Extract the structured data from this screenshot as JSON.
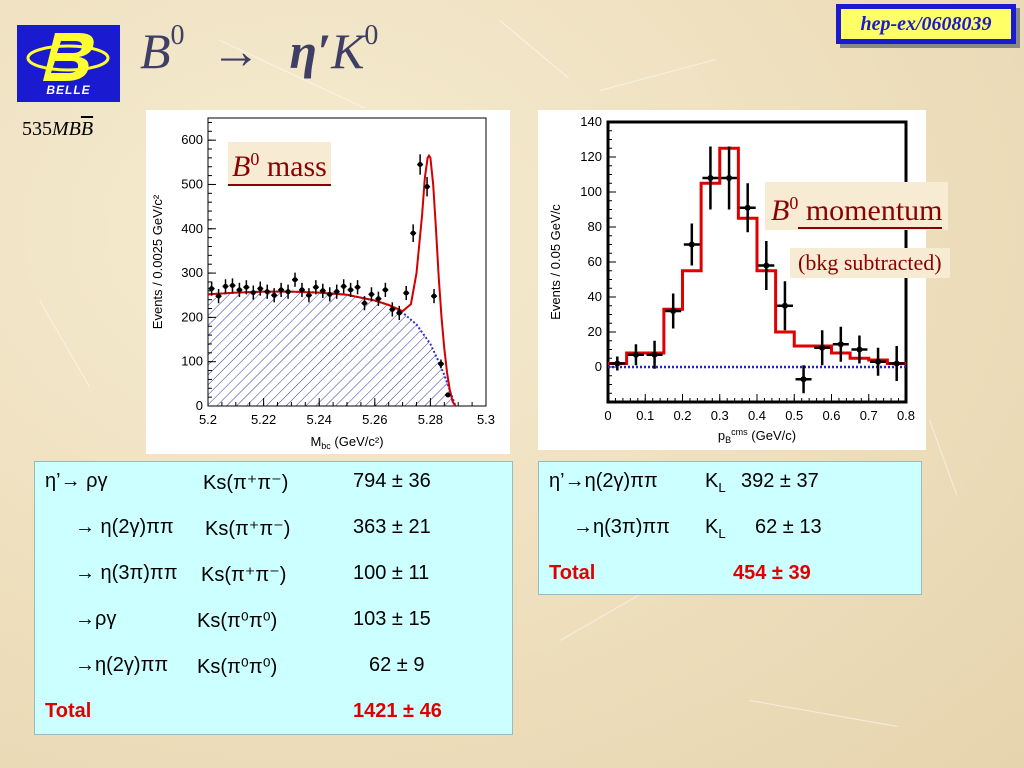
{
  "header": {
    "reference": "hep-ex/0608039",
    "title_B": "B",
    "title_B_sup": "0",
    "title_arrow": "→",
    "title_eta": "η′",
    "title_K": "K",
    "title_K_sup": "0",
    "luminosity_number": "535",
    "luminosity_unit_MB": "MB",
    "luminosity_unit_Bbar": "B",
    "logo_text": "BELLE"
  },
  "labels": {
    "mass_label_B": "B",
    "mass_label_sup": "0",
    "mass_label_text": " mass",
    "momentum_label_B": "B",
    "momentum_label_sup": "0",
    "momentum_label_text": " momentum",
    "momentum_sub": "(bkg subtracted)"
  },
  "table_left": {
    "rows": [
      {
        "mode": "η’→ ργ",
        "ks": "Ks(π⁺π⁻)",
        "yield": "794 ± 36"
      },
      {
        "mode": "→ η(2γ)ππ",
        "ks": "Ks(π⁺π⁻)",
        "yield": "363 ± 21"
      },
      {
        "mode": "→ η(3π)ππ",
        "ks": "Ks(π⁺π⁻)",
        "yield": "100 ± 11"
      },
      {
        "mode": "→ργ",
        "ks": "Ks(π⁰π⁰)",
        "yield": "103 ± 15"
      },
      {
        "mode": "→η(2γ)ππ",
        "ks": "Ks(π⁰π⁰)",
        "yield": "62 ± 9"
      }
    ],
    "total_label": "Total",
    "total_value": "1421 ± 46"
  },
  "table_right": {
    "rows": [
      {
        "mode": "η’→η(2γ)ππ",
        "kl": "K",
        "kl_sub": "L",
        "yield": "392 ± 37"
      },
      {
        "mode": "→η(3π)ππ",
        "kl": "K",
        "kl_sub": "L",
        "yield": "62 ± 13"
      }
    ],
    "total_label": "Total",
    "total_value": "454 ± 39"
  },
  "colors": {
    "accent_blue": "#1a1ad0",
    "fit_red": "#d00000",
    "bkg_blue": "#3333cc",
    "table_bg": "#ccffff",
    "label_red": "#8b0000"
  },
  "chart_data": [
    {
      "type": "scatter",
      "xlabel": "M",
      "xlabel_sub": "bc",
      "xlabel_unit": " (GeV/c²)",
      "ylabel": "Events / 0.0025 GeV/c²",
      "xlim": [
        5.2,
        5.3
      ],
      "ylim": [
        0,
        650
      ],
      "xticks": [
        "5.2",
        "5.22",
        "5.24",
        "5.26",
        "5.28",
        "5.3"
      ],
      "xtick_values": [
        5.2,
        5.22,
        5.24,
        5.26,
        5.28,
        5.3
      ],
      "yticks": [
        "0",
        "100",
        "200",
        "300",
        "400",
        "500",
        "600"
      ],
      "ytick_values": [
        0,
        100,
        200,
        300,
        400,
        500,
        600
      ],
      "points": {
        "x": [
          5.2013,
          5.2038,
          5.2063,
          5.2088,
          5.2113,
          5.2138,
          5.2163,
          5.2188,
          5.2213,
          5.2238,
          5.2263,
          5.2288,
          5.2313,
          5.2338,
          5.2363,
          5.2388,
          5.2413,
          5.2438,
          5.2463,
          5.2488,
          5.2513,
          5.2538,
          5.2563,
          5.2588,
          5.2613,
          5.2638,
          5.2663,
          5.2688,
          5.2713,
          5.2738,
          5.2763,
          5.2788,
          5.2813,
          5.2838,
          5.2863
        ],
        "y": [
          265,
          248,
          270,
          272,
          262,
          268,
          256,
          265,
          258,
          250,
          262,
          258,
          285,
          262,
          250,
          268,
          260,
          252,
          258,
          270,
          262,
          268,
          232,
          252,
          242,
          262,
          218,
          210,
          255,
          390,
          545,
          495,
          248,
          95,
          25
        ],
        "yerr": [
          16,
          16,
          16,
          16,
          16,
          16,
          16,
          16,
          16,
          16,
          16,
          16,
          16,
          16,
          16,
          16,
          16,
          16,
          16,
          16,
          16,
          16,
          16,
          16,
          16,
          16,
          16,
          16,
          16,
          20,
          23,
          22,
          16,
          10,
          5
        ]
      },
      "fit_total": {
        "x": [
          5.2,
          5.21,
          5.22,
          5.23,
          5.24,
          5.25,
          5.26,
          5.265,
          5.27,
          5.273,
          5.275,
          5.277,
          5.278,
          5.279,
          5.2795,
          5.28,
          5.281,
          5.282,
          5.283,
          5.284,
          5.285,
          5.286,
          5.287,
          5.288,
          5.289
        ],
        "y": [
          252,
          256,
          258,
          258,
          256,
          251,
          238,
          228,
          214,
          230,
          300,
          430,
          515,
          560,
          565,
          560,
          500,
          400,
          290,
          200,
          130,
          75,
          35,
          10,
          0
        ]
      },
      "fit_background": {
        "x": [
          5.2,
          5.21,
          5.22,
          5.23,
          5.24,
          5.25,
          5.26,
          5.265,
          5.27,
          5.275,
          5.28,
          5.283,
          5.285,
          5.287,
          5.289
        ],
        "y": [
          252,
          256,
          258,
          258,
          256,
          251,
          238,
          228,
          211,
          184,
          140,
          100,
          70,
          35,
          0
        ]
      },
      "series_colors": {
        "fit_total": "#d00000",
        "fit_background": "#3333cc"
      },
      "background_hatched": true
    },
    {
      "type": "line",
      "xlabel": "p",
      "xlabel_sub": "B",
      "xlabel_sup": "cms",
      "xlabel_unit": "  (GeV/c)",
      "ylabel": "Events / 0.05 GeV/c",
      "xlim": [
        0,
        0.8
      ],
      "ylim": [
        -20,
        140
      ],
      "xticks": [
        "0",
        "0.1",
        "0.2",
        "0.3",
        "0.4",
        "0.5",
        "0.6",
        "0.7",
        "0.8"
      ],
      "xtick_values": [
        0,
        0.1,
        0.2,
        0.3,
        0.4,
        0.5,
        0.6,
        0.7,
        0.8
      ],
      "yticks": [
        "0",
        "20",
        "40",
        "60",
        "80",
        "100",
        "120",
        "140"
      ],
      "ytick_values": [
        0,
        20,
        40,
        60,
        80,
        100,
        120,
        140
      ],
      "histogram": {
        "edges": [
          0,
          0.05,
          0.1,
          0.15,
          0.2,
          0.25,
          0.3,
          0.35,
          0.4,
          0.45,
          0.5,
          0.55,
          0.6,
          0.65,
          0.7,
          0.75,
          0.8
        ],
        "values": [
          2,
          8,
          8,
          33,
          55,
          105,
          125,
          85,
          55,
          20,
          12,
          12,
          8,
          5,
          4,
          2
        ]
      },
      "points": {
        "x": [
          0.025,
          0.075,
          0.125,
          0.175,
          0.225,
          0.275,
          0.325,
          0.375,
          0.425,
          0.475,
          0.525,
          0.575,
          0.625,
          0.675,
          0.725,
          0.775
        ],
        "y": [
          2,
          7,
          7,
          32,
          70,
          108,
          108,
          91,
          58,
          35,
          -7,
          11,
          13,
          10,
          3,
          2
        ],
        "yerr": [
          4,
          6,
          8,
          10,
          12,
          18,
          18,
          14,
          14,
          14,
          8,
          10,
          10,
          8,
          8,
          10
        ]
      },
      "baseline": 0,
      "series_colors": {
        "histogram": "#e00000",
        "baseline": "#2222cc"
      }
    }
  ]
}
